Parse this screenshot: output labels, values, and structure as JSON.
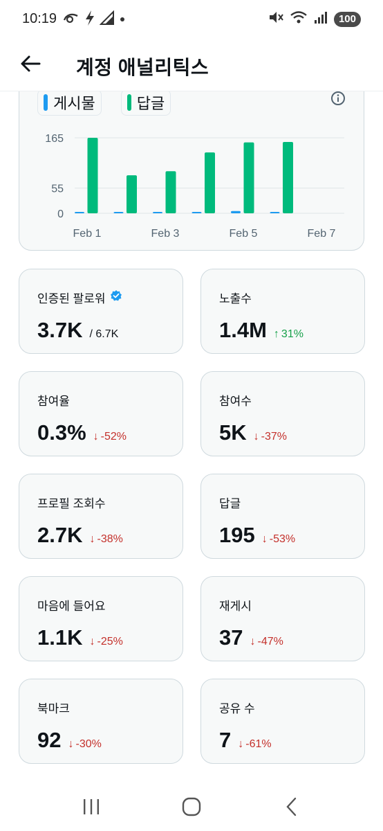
{
  "status_bar": {
    "time": "10:19",
    "battery": "100"
  },
  "header": {
    "title": "계정 애널리틱스"
  },
  "chart": {
    "legend": [
      {
        "label": "게시물",
        "color": "#1d9bf0"
      },
      {
        "label": "답글",
        "color": "#00ba7c"
      }
    ],
    "chart_data": {
      "type": "bar",
      "categories": [
        "Feb 1",
        "Feb 2",
        "Feb 3",
        "Feb 4",
        "Feb 5",
        "Feb 6",
        "Feb 7"
      ],
      "x_tick_labels": [
        "Feb 1",
        "Feb 3",
        "Feb 5",
        "Feb 7"
      ],
      "y_ticks": [
        0,
        55,
        165
      ],
      "ylim": [
        0,
        180
      ],
      "series": [
        {
          "name": "게시물",
          "color": "#1d9bf0",
          "values": [
            1,
            1,
            1,
            2,
            5,
            1,
            0
          ]
        },
        {
          "name": "답글",
          "color": "#00ba7c",
          "values": [
            165,
            83,
            92,
            133,
            155,
            156,
            0
          ]
        }
      ]
    }
  },
  "metrics": [
    {
      "label": "인증된 팔로워",
      "value": "3.7K",
      "sub": "/ 6.7K",
      "verified": true,
      "change": "",
      "direction": ""
    },
    {
      "label": "노출수",
      "value": "1.4M",
      "sub": "",
      "verified": false,
      "change": "31%",
      "direction": "up"
    },
    {
      "label": "참여율",
      "value": "0.3%",
      "sub": "",
      "verified": false,
      "change": "-52%",
      "direction": "down"
    },
    {
      "label": "참여수",
      "value": "5K",
      "sub": "",
      "verified": false,
      "change": "-37%",
      "direction": "down"
    },
    {
      "label": "프로필 조회수",
      "value": "2.7K",
      "sub": "",
      "verified": false,
      "change": "-38%",
      "direction": "down"
    },
    {
      "label": "답글",
      "value": "195",
      "sub": "",
      "verified": false,
      "change": "-53%",
      "direction": "down"
    },
    {
      "label": "마음에 들어요",
      "value": "1.1K",
      "sub": "",
      "verified": false,
      "change": "-25%",
      "direction": "down"
    },
    {
      "label": "재게시",
      "value": "37",
      "sub": "",
      "verified": false,
      "change": "-47%",
      "direction": "down"
    },
    {
      "label": "북마크",
      "value": "92",
      "sub": "",
      "verified": false,
      "change": "-30%",
      "direction": "down"
    },
    {
      "label": "공유 수",
      "value": "7",
      "sub": "",
      "verified": false,
      "change": "-61%",
      "direction": "down"
    }
  ]
}
